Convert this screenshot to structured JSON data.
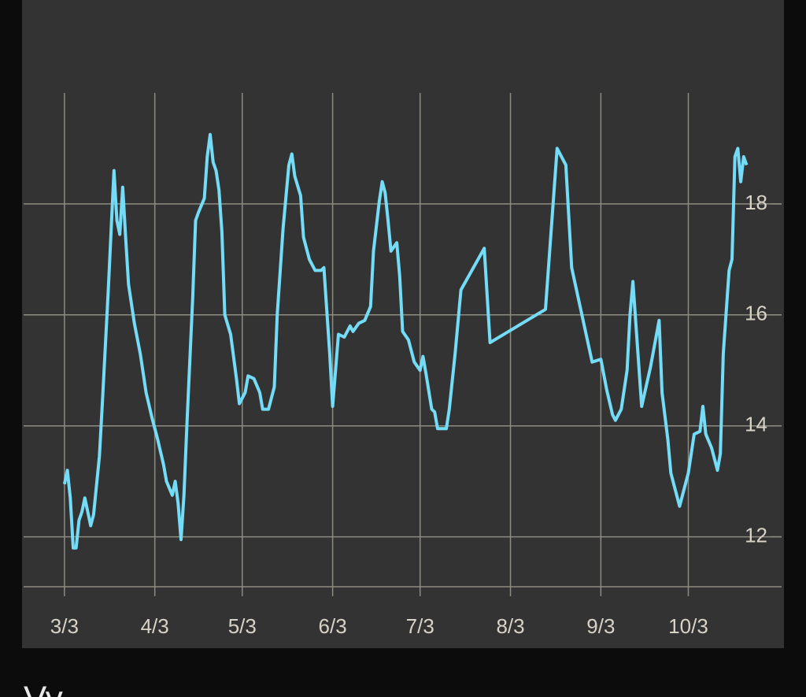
{
  "chart_data": {
    "type": "line",
    "x": [
      0,
      1,
      2,
      3,
      4,
      5,
      6,
      7,
      9,
      10,
      12,
      13,
      14,
      15,
      17,
      18,
      19,
      20,
      21,
      22,
      24,
      26,
      28,
      30,
      32,
      34,
      35,
      37,
      38,
      39,
      40,
      41,
      42,
      44,
      45,
      46,
      48,
      49,
      50,
      51,
      52,
      53,
      54,
      55,
      57,
      59,
      60,
      62,
      63,
      65,
      67,
      68,
      70,
      72,
      73,
      75,
      77,
      78,
      79,
      81,
      82,
      84,
      86,
      88,
      89,
      91,
      92,
      93,
      94,
      96,
      98,
      99,
      101,
      103,
      105,
      106,
      108,
      109,
      110,
      111,
      112,
      114,
      115,
      116,
      118,
      119,
      120,
      122,
      123,
      124,
      126,
      127,
      128,
      131,
      132,
      134,
      136,
      144,
      146,
      165,
      169,
      172,
      174,
      181,
      184,
      186,
      188,
      189,
      191,
      193,
      194,
      195,
      196,
      198,
      201,
      204,
      205,
      207,
      208,
      211,
      214,
      216,
      218,
      219,
      220,
      222,
      224,
      225,
      226,
      228,
      229,
      230,
      231,
      232,
      233,
      234
    ],
    "series": [
      {
        "color": "#74dcf7",
        "values": [
          12.95,
          13.2,
          12.7,
          11.8,
          11.8,
          12.3,
          12.45,
          12.7,
          12.2,
          12.4,
          13.45,
          14.4,
          15.4,
          16.4,
          18.6,
          17.7,
          17.45,
          18.3,
          17.4,
          16.55,
          15.85,
          15.3,
          14.6,
          14.15,
          13.75,
          13.3,
          13.0,
          12.75,
          13.0,
          12.6,
          11.95,
          12.75,
          14.0,
          16.3,
          17.7,
          17.85,
          18.1,
          18.85,
          19.25,
          18.75,
          18.6,
          18.25,
          17.5,
          16.0,
          15.65,
          14.85,
          14.4,
          14.6,
          14.9,
          14.85,
          14.6,
          14.3,
          14.3,
          14.7,
          16.0,
          17.55,
          18.7,
          18.9,
          18.5,
          18.15,
          17.4,
          17.0,
          16.8,
          16.8,
          16.85,
          15.3,
          14.35,
          15.0,
          15.65,
          15.6,
          15.8,
          15.7,
          15.85,
          15.9,
          16.15,
          17.15,
          18.05,
          18.4,
          18.2,
          17.7,
          17.15,
          17.3,
          16.7,
          15.7,
          15.55,
          15.35,
          15.15,
          15.0,
          15.25,
          14.95,
          14.3,
          14.25,
          13.95,
          13.95,
          14.3,
          15.3,
          16.45,
          17.2,
          15.5,
          16.1,
          19.0,
          18.7,
          16.85,
          15.15,
          15.2,
          14.65,
          14.2,
          14.1,
          14.3,
          15.0,
          16.0,
          16.6,
          15.85,
          14.35,
          15.05,
          15.9,
          14.6,
          13.75,
          13.15,
          12.55,
          13.15,
          13.85,
          13.9,
          14.35,
          13.85,
          13.6,
          13.2,
          13.5,
          15.3,
          16.8,
          17.0,
          18.85,
          19.0,
          18.4,
          18.85,
          18.7
        ]
      }
    ],
    "xlim": [
      -14,
      246
    ],
    "xticks": [
      {
        "value": 0,
        "label": "3/3"
      },
      {
        "value": 31,
        "label": "4/3"
      },
      {
        "value": 61,
        "label": "5/3"
      },
      {
        "value": 92,
        "label": "6/3"
      },
      {
        "value": 122,
        "label": "7/3"
      },
      {
        "value": 153,
        "label": "8/3"
      },
      {
        "value": 184,
        "label": "9/3"
      },
      {
        "value": 214,
        "label": "10/3"
      }
    ],
    "ylim": [
      11.1,
      20
    ],
    "yticks": [
      12,
      14,
      16,
      18
    ],
    "grid": true
  },
  "next_section_label": "Vy"
}
